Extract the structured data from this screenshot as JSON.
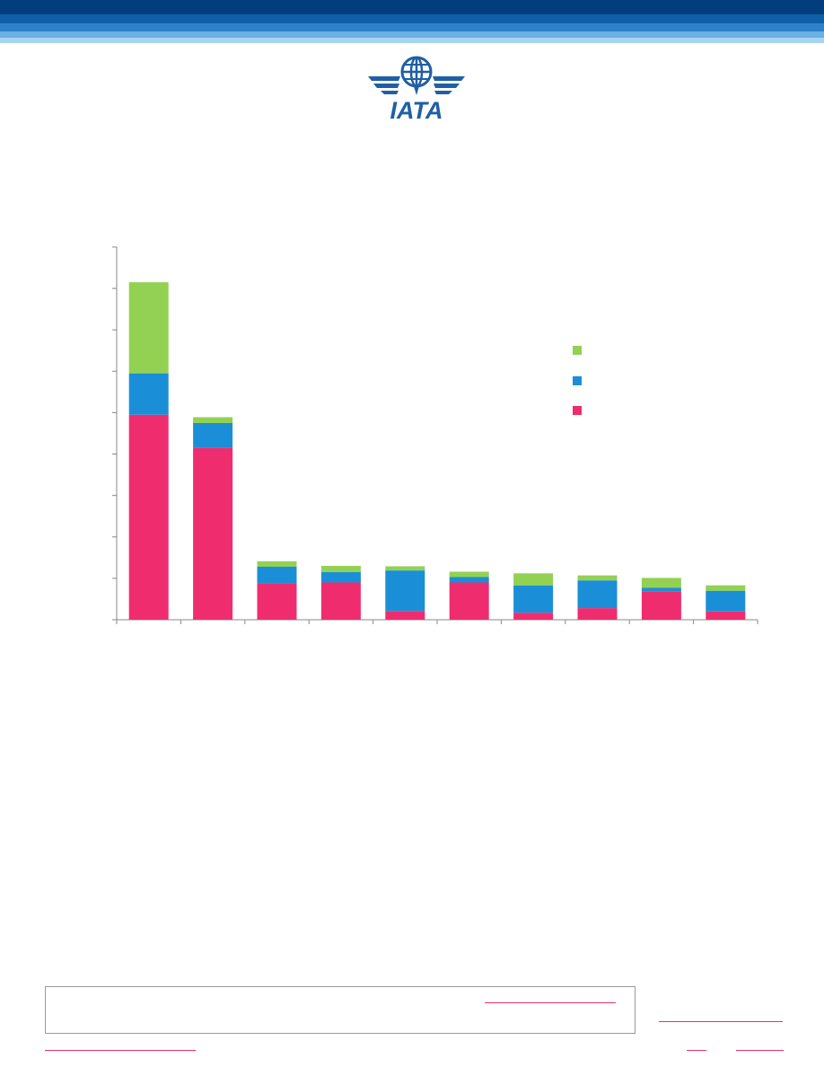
{
  "brand": {
    "logo_text": "IATA",
    "logo_color": "#1f5fa5",
    "header_colors": [
      "#003e7e",
      "#0f5fa8",
      "#2f82c9",
      "#6ab1e4",
      "#a9d4f1"
    ]
  },
  "chart_data": {
    "type": "bar",
    "stacked": true,
    "title": "",
    "xlabel": "",
    "ylabel": "",
    "ylim": [
      0,
      9
    ],
    "yticks": [
      0,
      1,
      2,
      3,
      4,
      5,
      6,
      7,
      8,
      9
    ],
    "categories": [
      "",
      "",
      "",
      "",
      "",
      "",
      "",
      "",
      "",
      ""
    ],
    "grid": false,
    "legend_position": "right",
    "series": [
      {
        "color": "#ef2d6e",
        "values": [
          4.95,
          4.15,
          0.88,
          0.9,
          0.21,
          0.9,
          0.17,
          0.28,
          0.69,
          0.2
        ]
      },
      {
        "color": "#1a8fd8",
        "values": [
          1.0,
          0.6,
          0.4,
          0.25,
          0.98,
          0.13,
          0.66,
          0.67,
          0.08,
          0.5
        ]
      },
      {
        "color": "#93d152",
        "values": [
          2.2,
          0.14,
          0.13,
          0.15,
          0.1,
          0.13,
          0.29,
          0.12,
          0.24,
          0.13
        ]
      }
    ]
  },
  "footer": {
    "link_color": "#e8326e"
  }
}
